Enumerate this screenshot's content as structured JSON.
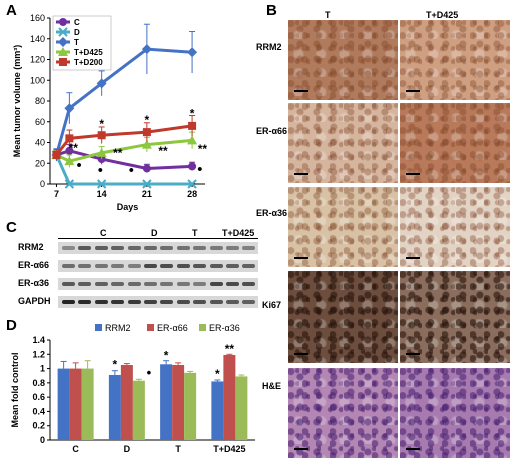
{
  "panels": {
    "A": "A",
    "B": "B",
    "C": "C",
    "D": "D"
  },
  "chart_a": {
    "type": "line",
    "ylabel": "Mean tumor volume (mm³)",
    "xlabel": "Days",
    "xlim": [
      6,
      30
    ],
    "ylim": [
      0,
      160
    ],
    "xticks": [
      7,
      14,
      21,
      28
    ],
    "yticks": [
      0,
      20,
      40,
      60,
      80,
      100,
      120,
      140,
      160
    ],
    "legend_position": "top-left",
    "series": [
      {
        "name": "C",
        "color": "#7030a0",
        "marker": "circle",
        "x": [
          7,
          9,
          14,
          21,
          28
        ],
        "y": [
          28,
          32,
          24,
          15,
          17
        ],
        "err": [
          5,
          6,
          5,
          4,
          4
        ]
      },
      {
        "name": "D",
        "color": "#4bacc6",
        "marker": "x",
        "x": [
          7,
          9,
          14,
          21,
          28
        ],
        "y": [
          28,
          0,
          0,
          0,
          0
        ],
        "err": [
          3,
          1,
          1,
          1,
          1
        ]
      },
      {
        "name": "T",
        "color": "#4472c4",
        "marker": "diamond",
        "x": [
          7,
          9,
          14,
          21,
          28
        ],
        "y": [
          28,
          73,
          97,
          130,
          127
        ],
        "err": [
          6,
          15,
          12,
          24,
          20
        ]
      },
      {
        "name": "T+D425",
        "color": "#8dc63f",
        "marker": "triangle",
        "x": [
          7,
          9,
          14,
          21,
          28
        ],
        "y": [
          28,
          22,
          30,
          38,
          42
        ],
        "err": [
          4,
          6,
          6,
          7,
          8
        ]
      },
      {
        "name": "T+D200",
        "color": "#c0392b",
        "marker": "square",
        "x": [
          7,
          9,
          14,
          21,
          28
        ],
        "y": [
          28,
          44,
          47,
          50,
          56
        ],
        "err": [
          5,
          8,
          8,
          9,
          10
        ]
      }
    ],
    "annotations": [
      {
        "text": "*",
        "x": 14,
        "y": 54
      },
      {
        "text": "*",
        "x": 21,
        "y": 58
      },
      {
        "text": "*",
        "x": 28,
        "y": 64
      },
      {
        "text": "**",
        "x": 9.6,
        "y": 31
      },
      {
        "text": "**",
        "x": 16.5,
        "y": 26
      },
      {
        "text": "**",
        "x": 23.5,
        "y": 28
      },
      {
        "text": "**",
        "x": 29.6,
        "y": 30
      },
      {
        "text": "•",
        "x": 10.5,
        "y": 14
      },
      {
        "text": "•",
        "x": 13.8,
        "y": 9
      },
      {
        "text": "•",
        "x": 18.6,
        "y": 9
      },
      {
        "text": "•",
        "x": 29.2,
        "y": 10
      }
    ]
  },
  "blot": {
    "groups": [
      "C",
      "D",
      "T",
      "T+D425"
    ],
    "rows": [
      "RRM2",
      "ER-α66",
      "ER-α36",
      "GAPDH"
    ]
  },
  "ihc": {
    "columns": [
      "T",
      "T+D425"
    ],
    "rows": [
      "RRM2",
      "ER-α66",
      "ER-α36",
      "Ki67",
      "H&E"
    ],
    "colors": {
      "RRM2": [
        "#b07a5c",
        "#cf9f82"
      ],
      "ER-α66": [
        "#d6b59f",
        "#b87a5a"
      ],
      "ER-α36": [
        "#d8c1a4",
        "#e3d3c4"
      ],
      "Ki67": [
        "#6d4e3e",
        "#8a6d5d"
      ],
      "H&E": [
        "#b486b4",
        "#a87bb0"
      ]
    }
  },
  "chart_d": {
    "type": "bar",
    "ylabel": "Mean fold control",
    "categories": [
      "C",
      "D",
      "T",
      "T+D425"
    ],
    "ylim": [
      0,
      1.4
    ],
    "yticks": [
      "0",
      "0.2",
      "0.4",
      "0.6",
      "0.8",
      "1",
      "1.2",
      "1.4"
    ],
    "legend_position": "top",
    "series": [
      {
        "name": "RRM2",
        "color": "#4472c4",
        "values": [
          1.0,
          0.91,
          1.06,
          0.82
        ],
        "err": [
          0.1,
          0.06,
          0.05,
          0.02
        ]
      },
      {
        "name": "ER-α66",
        "color": "#c0504d",
        "values": [
          1.0,
          1.05,
          1.05,
          1.19
        ],
        "err": [
          0.08,
          0.02,
          0.03,
          0.01
        ]
      },
      {
        "name": "ER-α36",
        "color": "#9bbb59",
        "values": [
          1.0,
          0.83,
          0.94,
          0.89
        ],
        "err": [
          0.11,
          0.02,
          0.02,
          0.02
        ]
      }
    ],
    "annotations": [
      {
        "text": "*",
        "category": 1,
        "series": 0,
        "y": 1.0
      },
      {
        "text": "•",
        "category": 1,
        "series": 2,
        "y": 0.88
      },
      {
        "text": "*",
        "category": 2,
        "series": 0,
        "y": 1.13
      },
      {
        "text": "*",
        "category": 3,
        "series": 0,
        "y": 0.87
      },
      {
        "text": "**",
        "category": 3,
        "series": 1,
        "y": 1.22
      }
    ]
  }
}
